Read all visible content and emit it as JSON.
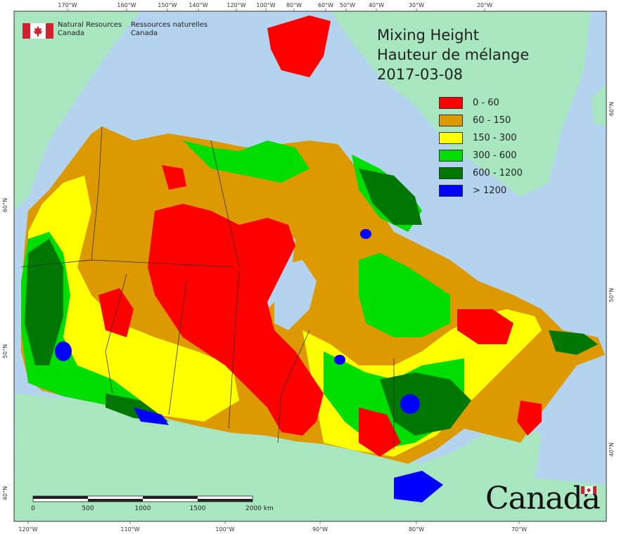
{
  "title": {
    "line1": "Mixing Height",
    "line2": "Hauteur de mélange",
    "date": "2017-03-08"
  },
  "agency": {
    "en_line1": "Natural Resources",
    "en_line2": "Canada",
    "fr_line1": "Ressources naturelles",
    "fr_line2": "Canada"
  },
  "wordmark": "Canada",
  "legend": [
    {
      "label": "0 - 60",
      "color": "#ff0000"
    },
    {
      "label": "60 - 150",
      "color": "#dd9900"
    },
    {
      "label": "150 - 300",
      "color": "#ffff00"
    },
    {
      "label": "300 - 600",
      "color": "#00dd00"
    },
    {
      "label": "600 - 1200",
      "color": "#007700"
    },
    {
      "label": "> 1200",
      "color": "#0000ff"
    }
  ],
  "graticule": {
    "top_labels": [
      "170°W",
      "160°W",
      "150°W",
      "140°W",
      "120°W",
      "100°W",
      "80°W",
      "60°W",
      "50°W",
      "40°W",
      "30°W",
      "20°W"
    ],
    "bottom_labels": [
      "120°W",
      "110°W",
      "100°W",
      "90°W",
      "80°W",
      "70°W"
    ],
    "left_labels": [
      "60°N",
      "50°N",
      "40°N"
    ],
    "right_labels": [
      "60°N",
      "50°N",
      "40°N"
    ]
  },
  "scale_bar": {
    "labels": [
      "0",
      "500",
      "1000",
      "1500",
      "2000 km"
    ]
  },
  "colors": {
    "ocean": "#b4d3ee",
    "foreign_land": "#a8e6c0",
    "boundary": "#333333"
  }
}
